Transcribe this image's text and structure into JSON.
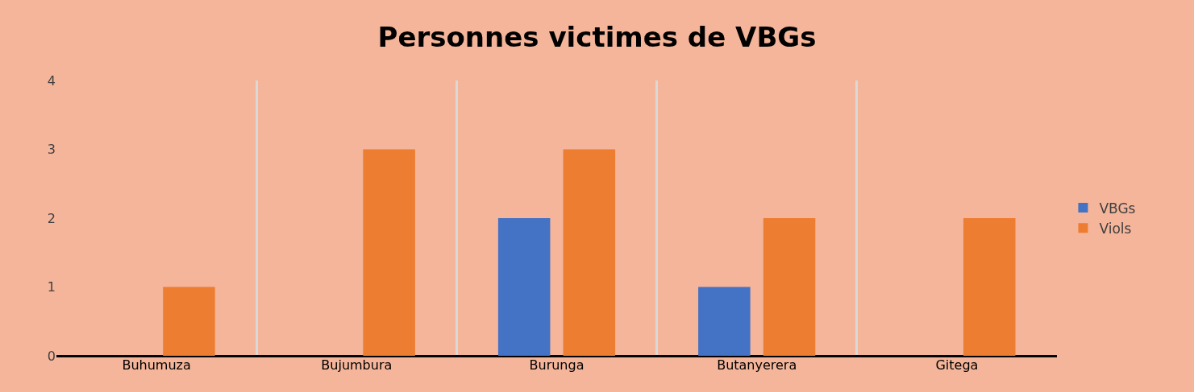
{
  "chart_data": {
    "type": "bar",
    "title": "Personnes victimes de VBGs",
    "categories": [
      "Buhumuza",
      "Bujumbura",
      "Burunga",
      "Butanyerera",
      "Gitega"
    ],
    "series": [
      {
        "name": "VBGs",
        "color": "#4472c4",
        "values": [
          0,
          0,
          2,
          1,
          0
        ]
      },
      {
        "name": "Viols",
        "color": "#ed7d31",
        "values": [
          1,
          3,
          3,
          2,
          2
        ]
      }
    ],
    "ylim": [
      0,
      4
    ],
    "yticks": [
      0,
      1,
      2,
      3,
      4
    ],
    "grid": "x",
    "legend": "right"
  }
}
